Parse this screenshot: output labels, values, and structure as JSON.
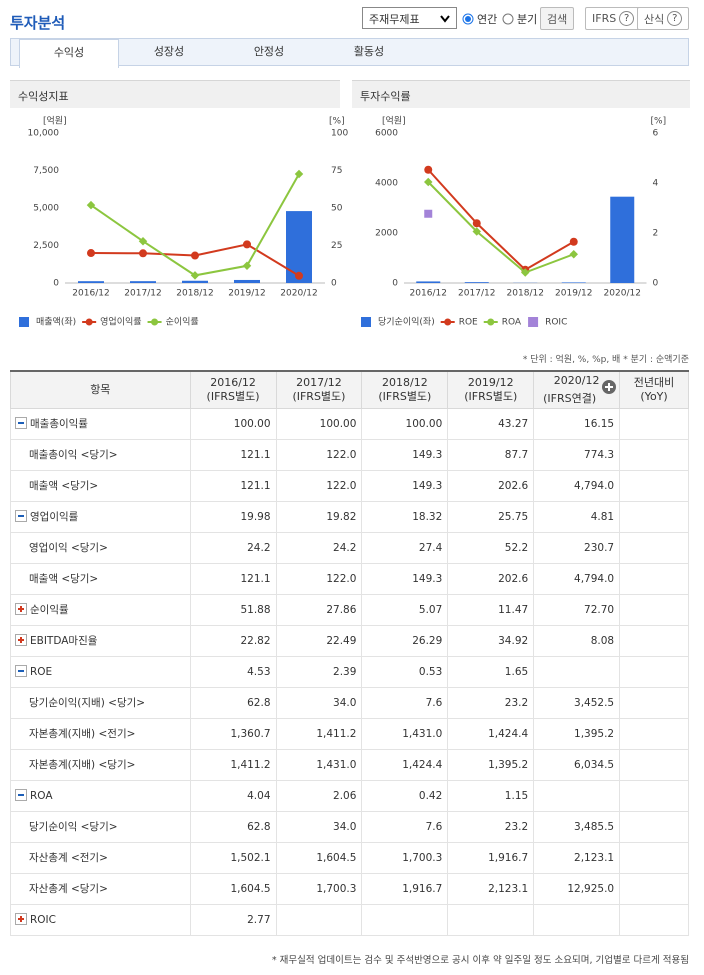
{
  "header": {
    "title": "투자분석",
    "select": "주재무제표",
    "radios": [
      "연간",
      "분기"
    ],
    "buttons": [
      "검색",
      "IFRS",
      "산식"
    ],
    "help_icon": "?"
  },
  "tabs": [
    "수익성",
    "성장성",
    "안정성",
    "활동성"
  ],
  "panels": [
    "수익성지표",
    "투자수익률"
  ],
  "chart_data": [
    {
      "type": "bar",
      "categories": [
        "2016/12",
        "2017/12",
        "2018/12",
        "2019/12",
        "2020/12"
      ],
      "y_unit": "[억원]",
      "y2_unit": "[%]",
      "ylim": [
        0,
        10000
      ],
      "yticks": [
        0,
        {
          "value": 2500,
          "label": "2,500"
        },
        {
          "value": 5000,
          "label": "5,000"
        },
        {
          "value": 7500,
          "label": "7,500"
        },
        {
          "value": 10000,
          "label": "10,000"
        }
      ],
      "y2lim": [
        0,
        100
      ],
      "y2ticks": [
        0,
        25,
        50,
        75,
        100
      ],
      "series": [
        {
          "name": "매출액(좌)",
          "type": "bar",
          "color": "#2f6fdb",
          "values": [
            121.1,
            122.0,
            149.3,
            202.6,
            4794.0
          ]
        },
        {
          "name": "영업이익률",
          "type": "line",
          "axis": "y2",
          "color": "#d23a1e",
          "values": [
            19.98,
            19.82,
            18.32,
            25.75,
            4.81
          ]
        },
        {
          "name": "순이익률",
          "type": "line",
          "axis": "y2",
          "color": "#8cc63f",
          "values": [
            51.88,
            27.86,
            5.07,
            11.47,
            72.7
          ]
        }
      ]
    },
    {
      "type": "bar",
      "categories": [
        "2016/12",
        "2017/12",
        "2018/12",
        "2019/12",
        "2020/12"
      ],
      "y_unit": "[억원]",
      "y2_unit": "[%]",
      "ylim": [
        0,
        6000
      ],
      "yticks": [
        0,
        2000,
        4000,
        6000
      ],
      "y2lim": [
        0,
        6
      ],
      "y2ticks": [
        0,
        2,
        4,
        6
      ],
      "series": [
        {
          "name": "당기순이익(좌)",
          "type": "bar",
          "color": "#2f6fdb",
          "values": [
            62.8,
            34.0,
            7.6,
            23.2,
            3452.5
          ]
        },
        {
          "name": "ROE",
          "type": "line",
          "axis": "y2",
          "color": "#d23a1e",
          "values": [
            4.53,
            2.39,
            0.53,
            1.65,
            null
          ]
        },
        {
          "name": "ROA",
          "type": "line",
          "axis": "y2",
          "color": "#8cc63f",
          "values": [
            4.04,
            2.06,
            0.42,
            1.15,
            null
          ]
        },
        {
          "name": "ROIC",
          "type": "scatter",
          "axis": "y2",
          "color": "#a383d8",
          "values": [
            2.77,
            null,
            null,
            null,
            null
          ]
        }
      ]
    }
  ],
  "note": "* 단위 : 억원, %, %p, 배   * 분기 : 순액기준",
  "table": {
    "columns": [
      [
        "항목"
      ],
      [
        "2016/12",
        "(IFRS별도)"
      ],
      [
        "2017/12",
        "(IFRS별도)"
      ],
      [
        "2018/12",
        "(IFRS별도)"
      ],
      [
        "2019/12",
        "(IFRS별도)"
      ],
      [
        "2020/12",
        "(IFRS연결)"
      ],
      [
        "전년대비",
        "(YoY)"
      ]
    ],
    "rows": [
      {
        "label": "매출총이익률",
        "icon": "minus",
        "values": [
          "100.00",
          "100.00",
          "100.00",
          "43.27",
          "16.15",
          null
        ]
      },
      {
        "label": "매출총이익 <당기>",
        "values": [
          "121.1",
          "122.0",
          "149.3",
          "87.7",
          "774.3",
          null
        ]
      },
      {
        "label": "매출액 <당기>",
        "values": [
          "121.1",
          "122.0",
          "149.3",
          "202.6",
          "4,794.0",
          null
        ]
      },
      {
        "label": "영업이익률",
        "icon": "minus",
        "values": [
          "19.98",
          "19.82",
          "18.32",
          "25.75",
          "4.81",
          null
        ]
      },
      {
        "label": "영업이익 <당기>",
        "values": [
          "24.2",
          "24.2",
          "27.4",
          "52.2",
          "230.7",
          null
        ]
      },
      {
        "label": "매출액 <당기>",
        "values": [
          "121.1",
          "122.0",
          "149.3",
          "202.6",
          "4,794.0",
          null
        ]
      },
      {
        "label": "순이익률",
        "icon": "plus",
        "values": [
          "51.88",
          "27.86",
          "5.07",
          "11.47",
          "72.70",
          null
        ]
      },
      {
        "label": "EBITDA마진율",
        "icon": "plus",
        "values": [
          "22.82",
          "22.49",
          "26.29",
          "34.92",
          "8.08",
          null
        ]
      },
      {
        "label": "ROE",
        "icon": "minus",
        "values": [
          "4.53",
          "2.39",
          "0.53",
          "1.65",
          null,
          null
        ]
      },
      {
        "label": "당기순이익(지배) <당기>",
        "values": [
          "62.8",
          "34.0",
          "7.6",
          "23.2",
          "3,452.5",
          null
        ]
      },
      {
        "label": "자본총계(지배) <전기>",
        "values": [
          "1,360.7",
          "1,411.2",
          "1,431.0",
          "1,424.4",
          "1,395.2",
          null
        ]
      },
      {
        "label": "자본총계(지배) <당기>",
        "values": [
          "1,411.2",
          "1,431.0",
          "1,424.4",
          "1,395.2",
          "6,034.5",
          null
        ]
      },
      {
        "label": "ROA",
        "icon": "minus",
        "values": [
          "4.04",
          "2.06",
          "0.42",
          "1.15",
          null,
          null
        ]
      },
      {
        "label": "당기순이익 <당기>",
        "values": [
          "62.8",
          "34.0",
          "7.6",
          "23.2",
          "3,485.5",
          null
        ]
      },
      {
        "label": "자산총계 <전기>",
        "values": [
          "1,502.1",
          "1,604.5",
          "1,700.3",
          "1,916.7",
          "2,123.1",
          null
        ]
      },
      {
        "label": "자산총계 <당기>",
        "values": [
          "1,604.5",
          "1,700.3",
          "1,916.7",
          "2,123.1",
          "12,925.0",
          null
        ]
      },
      {
        "label": "ROIC",
        "icon": "plus",
        "values": [
          "2.77",
          null,
          null,
          null,
          null,
          null
        ]
      }
    ]
  },
  "footnote": "* 재무실적 업데이트는 검수 및 주석반영으로 공시 이후 약 일주일 정도 소요되며, 기업별로 다르게 적용됨"
}
